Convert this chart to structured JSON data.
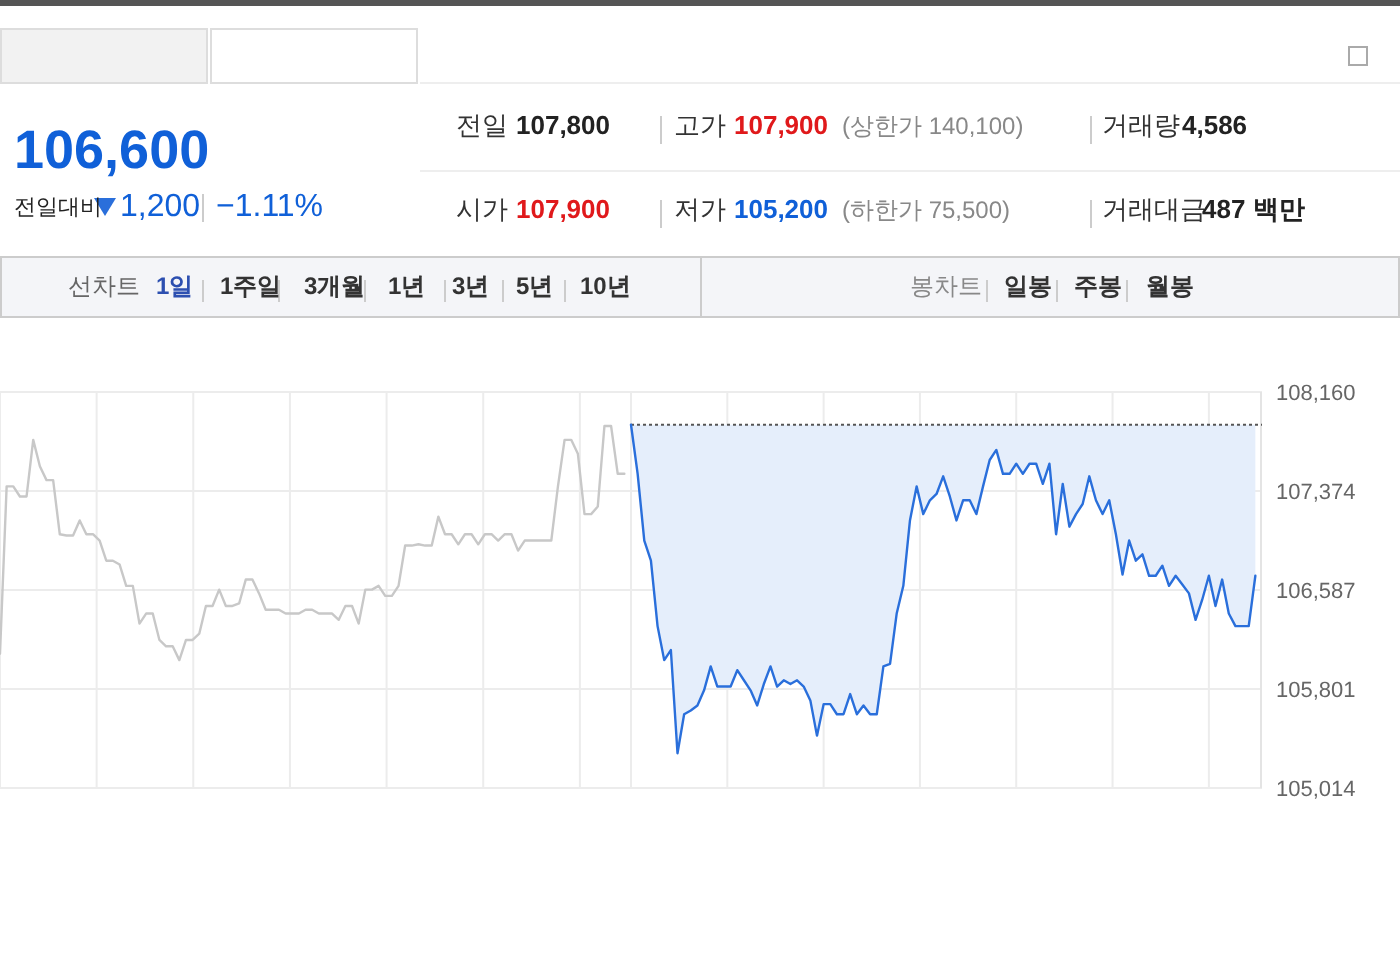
{
  "chart_data": [
    {
      "type": "other",
      "annotations": [
        "106,600",
        "전일대비",
        "1,200",
        "−1.11%",
        "전일",
        "107,800",
        "고가",
        "107,900",
        "(상한가 140,100)",
        "거래량",
        "4,586",
        "시가",
        "107,900",
        "저가",
        "105,200",
        "(하한가 75,500)",
        "거래대금",
        "487 백만",
        "선차트",
        "1일",
        "1주일",
        "3개월",
        "1년",
        "3년",
        "5년",
        "10년",
        "봉차트",
        "일봉",
        "주봉",
        "월봉"
      ]
    },
    {
      "type": "line",
      "ylim": [
        105014,
        108160
      ],
      "categories": [
        null,
        null,
        null,
        null,
        null,
        null,
        null,
        null,
        null,
        null,
        null,
        null,
        null,
        null,
        null,
        null,
        null,
        null,
        null,
        null,
        null,
        null,
        null,
        null,
        null,
        null,
        null,
        null,
        null,
        null,
        null,
        null,
        null,
        null,
        null,
        null,
        null,
        null,
        null,
        null,
        null,
        null,
        null,
        null,
        null,
        null,
        null,
        null,
        null,
        null,
        null,
        null,
        null,
        null,
        null,
        null,
        null,
        null,
        null,
        null,
        null,
        null,
        null,
        null,
        null,
        null,
        null,
        null,
        null,
        null,
        null,
        null,
        null,
        null,
        null,
        null,
        null,
        null,
        null,
        null,
        null,
        null,
        null,
        null,
        null,
        null,
        null,
        null,
        null,
        null,
        null,
        null,
        null,
        null,
        null,
        null,
        null,
        null,
        null,
        null,
        null,
        null,
        null,
        null,
        null,
        null,
        null,
        null,
        null,
        null,
        null,
        null,
        null,
        null,
        null,
        null,
        null,
        null,
        null,
        null,
        null,
        null,
        null,
        null,
        null,
        null,
        null,
        null,
        null,
        null,
        null,
        null,
        null,
        null,
        null,
        null,
        null,
        null,
        null,
        null,
        null,
        null,
        null,
        null,
        null,
        null,
        null,
        null,
        null,
        null,
        null,
        null,
        null,
        null,
        null,
        null,
        null,
        null,
        null,
        null,
        null,
        null,
        null,
        null,
        null,
        null,
        null,
        null,
        null,
        null,
        null,
        null,
        null,
        null,
        null,
        null,
        null,
        null,
        null,
        null,
        null,
        null,
        null,
        null,
        null,
        null,
        null,
        null,
        null,
        null
      ],
      "yticks": [
        {
          "value": 108160,
          "label": "108,160"
        },
        {
          "value": 107374,
          "label": "107,374"
        },
        {
          "value": 106587,
          "label": "106,587"
        },
        {
          "value": 105801,
          "label": "105,801"
        },
        {
          "value": 105014,
          "label": "105,014"
        }
      ],
      "tick_labels": "y",
      "grid": true,
      "ref_lines": [
        {
          "axis": "y",
          "value": 107900,
          "line_style": "dotted",
          "color": "#555555"
        }
      ],
      "series": [
        {
          "color": "#c8c8c8",
          "values": [
            106080,
            107410,
            107410,
            107330,
            107330,
            107780,
            107570,
            107460,
            107460,
            107030,
            107020,
            107020,
            107140,
            107030,
            107030,
            106980,
            106820,
            106820,
            106790,
            106620,
            106620,
            106320,
            106400,
            106400,
            106190,
            106140,
            106140,
            106030,
            106190,
            106190,
            106240,
            106460,
            106460,
            106590,
            106460,
            106460,
            106480,
            106670,
            106670,
            106560,
            106430,
            106430,
            106430,
            106400,
            106400,
            106400,
            106430,
            106430,
            106400,
            106400,
            106400,
            106350,
            106460,
            106460,
            106320,
            106590,
            106590,
            106620,
            106540,
            106540,
            106620,
            106940,
            106940,
            106950,
            106940,
            106940,
            107170,
            107030,
            107030,
            106950,
            107030,
            107030,
            106950,
            107030,
            107030,
            106980,
            107030,
            107030,
            106900,
            106980,
            106980,
            106980,
            106980,
            106980,
            107410,
            107780,
            107780,
            107670,
            107190,
            107190,
            107250,
            107890,
            107890,
            107510,
            107510,
            null,
            null,
            null,
            null,
            null,
            null,
            null,
            null,
            null,
            null,
            null,
            null,
            null,
            null,
            null,
            null,
            null,
            null,
            null,
            null,
            null,
            null,
            null,
            null,
            null,
            null,
            null,
            null,
            null,
            null,
            null,
            null,
            null,
            null,
            null,
            null,
            null,
            null,
            null,
            null,
            null,
            null,
            null,
            null,
            null,
            null,
            null,
            null,
            null,
            null,
            null,
            null,
            null,
            null,
            null,
            null,
            null,
            null,
            null,
            null,
            null,
            null,
            null,
            null,
            null,
            null,
            null,
            null,
            null,
            null,
            null,
            null,
            null,
            null,
            null,
            null,
            null,
            null,
            null,
            null,
            null,
            null,
            null,
            null,
            null,
            null,
            null,
            null,
            null,
            null,
            null,
            null,
            null,
            null,
            null
          ]
        },
        {
          "color": "#2a6fdb",
          "values": [
            null,
            null,
            null,
            null,
            null,
            null,
            null,
            null,
            null,
            null,
            null,
            null,
            null,
            null,
            null,
            null,
            null,
            null,
            null,
            null,
            null,
            null,
            null,
            null,
            null,
            null,
            null,
            null,
            null,
            null,
            null,
            null,
            null,
            null,
            null,
            null,
            null,
            null,
            null,
            null,
            null,
            null,
            null,
            null,
            null,
            null,
            null,
            null,
            null,
            null,
            null,
            null,
            null,
            null,
            null,
            null,
            null,
            null,
            null,
            null,
            null,
            null,
            null,
            null,
            null,
            null,
            null,
            null,
            null,
            null,
            null,
            null,
            null,
            null,
            null,
            null,
            null,
            null,
            null,
            null,
            null,
            null,
            null,
            null,
            null,
            null,
            null,
            null,
            null,
            null,
            null,
            null,
            null,
            null,
            null,
            107900,
            107510,
            106980,
            106820,
            106300,
            106030,
            106110,
            105290,
            105600,
            105630,
            105670,
            105790,
            105980,
            105820,
            105820,
            105820,
            105950,
            105870,
            105790,
            105670,
            105840,
            105980,
            105820,
            105870,
            105840,
            105870,
            105820,
            105710,
            105430,
            105680,
            105680,
            105600,
            105600,
            105760,
            105600,
            105670,
            105600,
            105600,
            105980,
            106000,
            106400,
            106620,
            107140,
            107410,
            107190,
            107300,
            107350,
            107490,
            107330,
            107140,
            107300,
            107300,
            107190,
            107410,
            107620,
            107700,
            107510,
            107510,
            107590,
            107510,
            107590,
            107590,
            107430,
            107590,
            107030,
            107430,
            107090,
            107190,
            107270,
            107490,
            107300,
            107190,
            107300,
            107030,
            106710,
            106980,
            106820,
            106870,
            106700,
            106700,
            106780,
            106620,
            106700,
            106630,
            106560,
            106350,
            106510,
            106700,
            106460,
            106670,
            106400,
            106300,
            106300,
            106300,
            106700
          ],
          "lower": [
            null,
            null,
            null,
            null,
            null,
            null,
            null,
            null,
            null,
            null,
            null,
            null,
            null,
            null,
            null,
            null,
            null,
            null,
            null,
            null,
            null,
            null,
            null,
            null,
            null,
            null,
            null,
            null,
            null,
            null,
            null,
            null,
            null,
            null,
            null,
            null,
            null,
            null,
            null,
            null,
            null,
            null,
            null,
            null,
            null,
            null,
            null,
            null,
            null,
            null,
            null,
            null,
            null,
            null,
            null,
            null,
            null,
            null,
            null,
            null,
            null,
            null,
            null,
            null,
            null,
            null,
            null,
            null,
            null,
            null,
            null,
            null,
            null,
            null,
            null,
            null,
            null,
            null,
            null,
            null,
            null,
            null,
            null,
            null,
            null,
            null,
            null,
            null,
            null,
            null,
            null,
            null,
            null,
            null,
            null,
            107900,
            107510,
            106980,
            106820,
            106300,
            106030,
            106110,
            105290,
            105600,
            105630,
            105670,
            105790,
            105980,
            105820,
            105820,
            105820,
            105950,
            105870,
            105790,
            105670,
            105840,
            105980,
            105820,
            105870,
            105840,
            105870,
            105820,
            105710,
            105430,
            105680,
            105680,
            105600,
            105600,
            105760,
            105600,
            105670,
            105600,
            105600,
            105980,
            106000,
            106400,
            106620,
            107140,
            107410,
            107190,
            107300,
            107350,
            107490,
            107330,
            107140,
            107300,
            107300,
            107190,
            107410,
            107620,
            107700,
            107510,
            107510,
            107590,
            107510,
            107590,
            107590,
            107430,
            107590,
            107030,
            107430,
            107090,
            107190,
            107270,
            107490,
            107300,
            107190,
            107300,
            107030,
            106710,
            106980,
            106820,
            106870,
            106700,
            106700,
            106780,
            106620,
            106700,
            106630,
            106560,
            106350,
            106510,
            106700,
            106460,
            106670,
            106400,
            106300,
            106300,
            106300,
            106700
          ],
          "upper": [
            null,
            null,
            null,
            null,
            null,
            null,
            null,
            null,
            null,
            null,
            null,
            null,
            null,
            null,
            null,
            null,
            null,
            null,
            null,
            null,
            null,
            null,
            null,
            null,
            null,
            null,
            null,
            null,
            null,
            null,
            null,
            null,
            null,
            null,
            null,
            null,
            null,
            null,
            null,
            null,
            null,
            null,
            null,
            null,
            null,
            null,
            null,
            null,
            null,
            null,
            null,
            null,
            null,
            null,
            null,
            null,
            null,
            null,
            null,
            null,
            null,
            null,
            null,
            null,
            null,
            null,
            null,
            null,
            null,
            null,
            null,
            null,
            null,
            null,
            null,
            null,
            null,
            null,
            null,
            null,
            null,
            null,
            null,
            null,
            null,
            null,
            null,
            null,
            null,
            null,
            null,
            null,
            null,
            null,
            null,
            107900,
            107900,
            107900,
            107900,
            107900,
            107900,
            107900,
            107900,
            107900,
            107900,
            107900,
            107900,
            107900,
            107900,
            107900,
            107900,
            107900,
            107900,
            107900,
            107900,
            107900,
            107900,
            107900,
            107900,
            107900,
            107900,
            107900,
            107900,
            107900,
            107900,
            107900,
            107900,
            107900,
            107900,
            107900,
            107900,
            107900,
            107900,
            107900,
            107900,
            107900,
            107900,
            107900,
            107900,
            107900,
            107900,
            107900,
            107900,
            107900,
            107900,
            107900,
            107900,
            107900,
            107900,
            107900,
            107900,
            107900,
            107900,
            107900,
            107900,
            107900,
            107900,
            107900,
            107900,
            107900,
            107900,
            107900,
            107900,
            107900,
            107900,
            107900,
            107900,
            107900,
            107900,
            107900,
            107900,
            107900,
            107900,
            107900,
            107900,
            107900,
            107900,
            107900,
            107900,
            107900,
            107900,
            107900,
            107900,
            107900,
            107900,
            107900,
            107900,
            107900,
            107900,
            107900
          ]
        }
      ]
    }
  ]
}
